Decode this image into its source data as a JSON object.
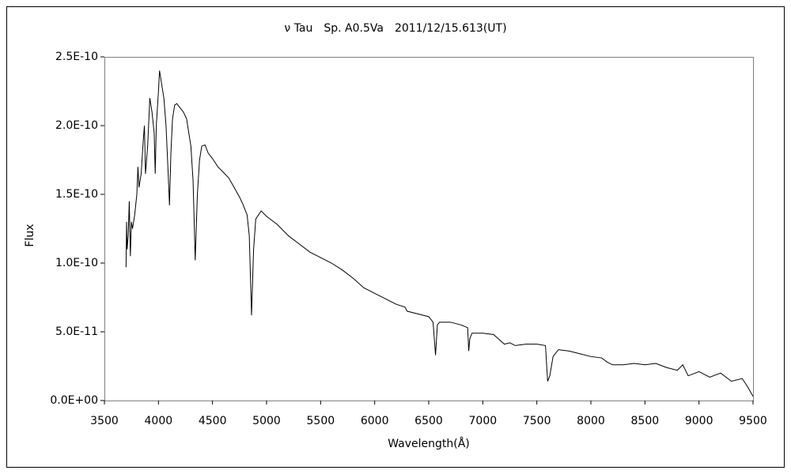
{
  "chart_data": {
    "type": "line",
    "title": "ν Tau　Sp. A0.5Va　2011/12/15.613(UT)",
    "x_label": "Wavelength(Å)",
    "y_label": "Flux",
    "xlim": [
      3500,
      9500
    ],
    "xticks": [
      3500,
      4000,
      4500,
      5000,
      5500,
      6000,
      6500,
      7000,
      7500,
      8000,
      8500,
      9000,
      9500
    ],
    "ylim": [
      0,
      2.5e-10
    ],
    "yticks": [
      {
        "value": 0,
        "label": "0.0E+00"
      },
      {
        "value": 5e-11,
        "label": "5.0E-11"
      },
      {
        "value": 1e-10,
        "label": "1.0E-10"
      },
      {
        "value": 1.5e-10,
        "label": "1.5E-10"
      },
      {
        "value": 2e-10,
        "label": "2.0E-10"
      },
      {
        "value": 2.5e-10,
        "label": "2.5E-10"
      }
    ],
    "grid": false,
    "color": "#000000",
    "x": [
      3700,
      3705,
      3710,
      3720,
      3730,
      3740,
      3750,
      3760,
      3780,
      3800,
      3810,
      3820,
      3840,
      3860,
      3870,
      3880,
      3900,
      3920,
      3940,
      3960,
      3970,
      3980,
      4000,
      4010,
      4030,
      4050,
      4070,
      4090,
      4102,
      4115,
      4130,
      4150,
      4170,
      4200,
      4230,
      4260,
      4280,
      4300,
      4320,
      4340,
      4360,
      4380,
      4400,
      4430,
      4460,
      4500,
      4550,
      4600,
      4650,
      4700,
      4750,
      4780,
      4820,
      4840,
      4861,
      4880,
      4900,
      4950,
      5000,
      5100,
      5200,
      5300,
      5400,
      5500,
      5600,
      5700,
      5800,
      5900,
      6000,
      6100,
      6200,
      6280,
      6300,
      6400,
      6500,
      6540,
      6563,
      6580,
      6600,
      6700,
      6800,
      6860,
      6870,
      6880,
      6900,
      7000,
      7100,
      7200,
      7250,
      7300,
      7400,
      7500,
      7580,
      7600,
      7620,
      7650,
      7700,
      7800,
      7900,
      8000,
      8100,
      8150,
      8200,
      8300,
      8400,
      8500,
      8600,
      8700,
      8800,
      8850,
      8900,
      9000,
      9100,
      9200,
      9300,
      9400,
      9450,
      9500
    ],
    "values": [
      9.7e-11,
      1.3e-10,
      1.1e-10,
      1.2e-10,
      1.45e-10,
      1.05e-10,
      1.3e-10,
      1.25e-10,
      1.35e-10,
      1.5e-10,
      1.7e-10,
      1.55e-10,
      1.65e-10,
      1.9e-10,
      2e-10,
      1.65e-10,
      1.85e-10,
      2.2e-10,
      2.1e-10,
      1.95e-10,
      1.65e-10,
      2e-10,
      2.25e-10,
      2.4e-10,
      2.3e-10,
      2.2e-10,
      2e-10,
      1.65e-10,
      1.42e-10,
      1.8e-10,
      2.05e-10,
      2.15e-10,
      2.16e-10,
      2.13e-10,
      2.1e-10,
      2.05e-10,
      1.95e-10,
      1.85e-10,
      1.6e-10,
      1.02e-10,
      1.5e-10,
      1.75e-10,
      1.85e-10,
      1.86e-10,
      1.8e-10,
      1.76e-10,
      1.7e-10,
      1.66e-10,
      1.62e-10,
      1.55e-10,
      1.48e-10,
      1.43e-10,
      1.35e-10,
      1.2e-10,
      6.2e-11,
      1.1e-10,
      1.32e-10,
      1.38e-10,
      1.34e-10,
      1.28e-10,
      1.2e-10,
      1.14e-10,
      1.08e-10,
      1.04e-10,
      1e-10,
      9.5e-11,
      8.9e-11,
      8.2e-11,
      7.8e-11,
      7.4e-11,
      7e-11,
      6.8e-11,
      6.5e-11,
      6.3e-11,
      6.1e-11,
      5.7e-11,
      3.3e-11,
      5.5e-11,
      5.7e-11,
      5.7e-11,
      5.5e-11,
      5.3e-11,
      3.6e-11,
      4.5e-11,
      4.9e-11,
      4.9e-11,
      4.8e-11,
      4.1e-11,
      4.2e-11,
      4e-11,
      4.1e-11,
      4.1e-11,
      4e-11,
      1.4e-11,
      1.8e-11,
      3.2e-11,
      3.7e-11,
      3.6e-11,
      3.4e-11,
      3.2e-11,
      3.1e-11,
      2.8e-11,
      2.6e-11,
      2.6e-11,
      2.7e-11,
      2.6e-11,
      2.7e-11,
      2.4e-11,
      2.2e-11,
      2.6e-11,
      1.8e-11,
      2.1e-11,
      1.7e-11,
      2e-11,
      1.4e-11,
      1.6e-11,
      1e-11,
      3e-12
    ]
  }
}
